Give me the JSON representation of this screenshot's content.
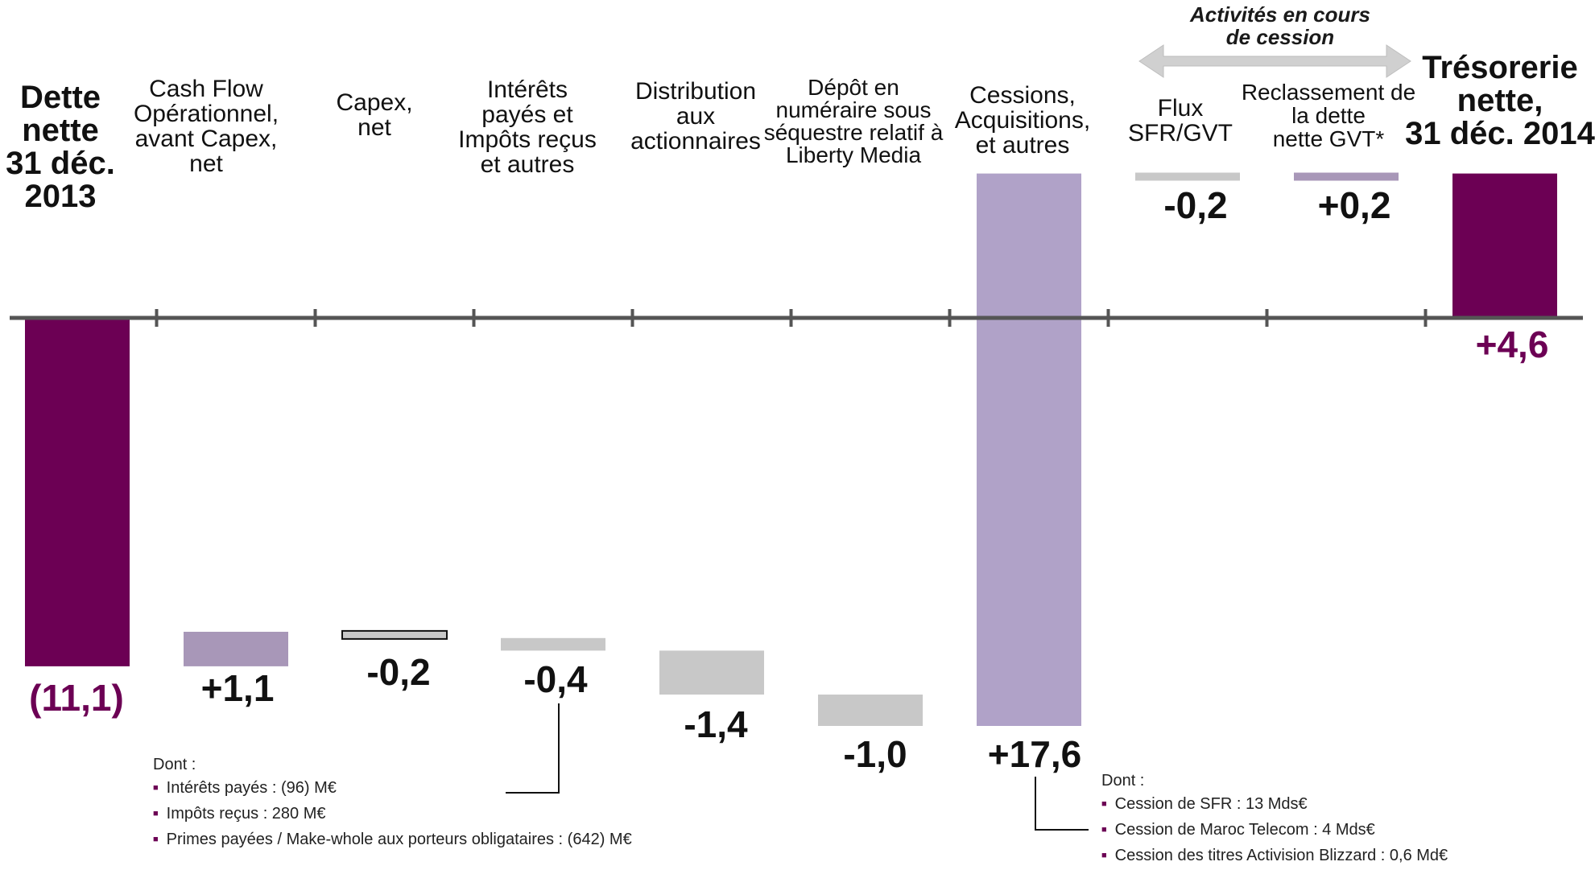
{
  "chart_data": {
    "type": "bar",
    "subtype": "waterfall",
    "unit": "Mds€",
    "section_title": [
      "Activités en cours",
      "de cession"
    ],
    "categories": [
      {
        "label": [
          "Dette",
          "nette",
          "31 déc.",
          "2013"
        ],
        "value": -11.1,
        "kind": "total",
        "value_label": "(11,1)",
        "color": "#6c0054"
      },
      {
        "label": [
          "Cash Flow",
          "Opérationnel,",
          "avant Capex,",
          "net"
        ],
        "value": 1.1,
        "kind": "step",
        "value_label": "+1,1",
        "color": "#a897b8"
      },
      {
        "label": [
          "Capex,",
          "net"
        ],
        "value": -0.2,
        "kind": "step",
        "value_label": "-0,2",
        "color": "#c8c8c8"
      },
      {
        "label": [
          "Intérêts",
          "payés et",
          "Impôts reçus",
          "et autres"
        ],
        "value": -0.4,
        "kind": "step",
        "value_label": "-0,4",
        "color": "#c8c8c8"
      },
      {
        "label": [
          "Distribution",
          "aux",
          "actionnaires"
        ],
        "value": -1.4,
        "kind": "step",
        "value_label": "-1,4",
        "color": "#c8c8c8"
      },
      {
        "label": [
          "Dépôt en",
          "numéraire sous",
          "séquestre relatif à",
          "Liberty Media"
        ],
        "value": -1.0,
        "kind": "step",
        "value_label": "-1,0",
        "color": "#c8c8c8"
      },
      {
        "label": [
          "Cessions,",
          "Acquisitions,",
          "et autres"
        ],
        "value": 17.6,
        "kind": "step",
        "value_label": "+17,6",
        "color": "#b0a2c8"
      },
      {
        "label": [
          "Flux",
          "SFR/GVT"
        ],
        "value": -0.2,
        "kind": "step",
        "value_label": "-0,2",
        "color": "#c8c8c8"
      },
      {
        "label": [
          "Reclassement de",
          "la dette",
          "nette GVT*"
        ],
        "value": 0.2,
        "kind": "step",
        "value_label": "+0,2",
        "color": "#a897b8"
      },
      {
        "label": [
          "Trésorerie",
          "nette,",
          "31 déc. 2014"
        ],
        "value": 4.6,
        "kind": "total",
        "value_label": "+4,6",
        "color": "#6c0054"
      }
    ],
    "notes": [
      {
        "title": "Dont :",
        "items": [
          "Intérêts payés : (96) M€",
          "Impôts reçus : 280 M€",
          "Primes payées / Make-whole aux porteurs obligataires : (642) M€"
        ]
      },
      {
        "title": "Dont :",
        "items": [
          "Cession de SFR : 13 Mds€",
          "Cession de Maroc Telecom : 4 Mds€",
          "Cession des titres Activision Blizzard : 0,6 Md€"
        ]
      }
    ],
    "colors": {
      "total": "#6c0054",
      "positive": "#a897b8",
      "negative": "#c8c8c8",
      "axis": "#555555"
    }
  }
}
